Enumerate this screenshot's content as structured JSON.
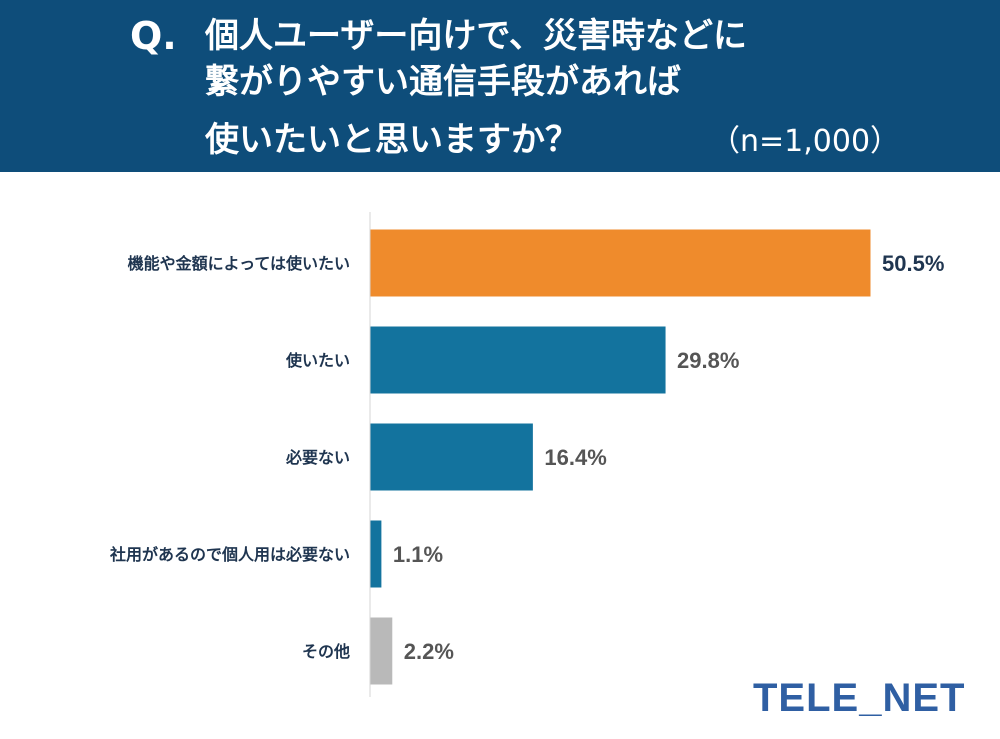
{
  "header": {
    "q_label": "Q.",
    "question_lines": [
      "個人ユーザー向けで、災害時などに",
      "繋がりやすい通信手段があれば",
      "使いたいと思いますか？"
    ],
    "sample_size": "（n=1,000）"
  },
  "chart_data": {
    "type": "bar",
    "orientation": "horizontal",
    "categories": [
      "機能や金額によっては使いたい",
      "使いたい",
      "必要ない",
      "社用があるので個人用は必要ない",
      "その他"
    ],
    "values": [
      50.5,
      29.8,
      16.4,
      1.1,
      2.2
    ],
    "value_labels": [
      "50.5%",
      "29.8%",
      "16.4%",
      "1.1%",
      "2.2%"
    ],
    "unit": "%",
    "xlim": [
      0,
      60
    ],
    "grid": false,
    "legend": "none",
    "colors": [
      "#ef8b2c",
      "#13739e",
      "#13739e",
      "#13739e",
      "#b9b9b9"
    ],
    "title": "",
    "xlabel": "",
    "ylabel": ""
  },
  "logo": {
    "text": "TELE_NET"
  }
}
